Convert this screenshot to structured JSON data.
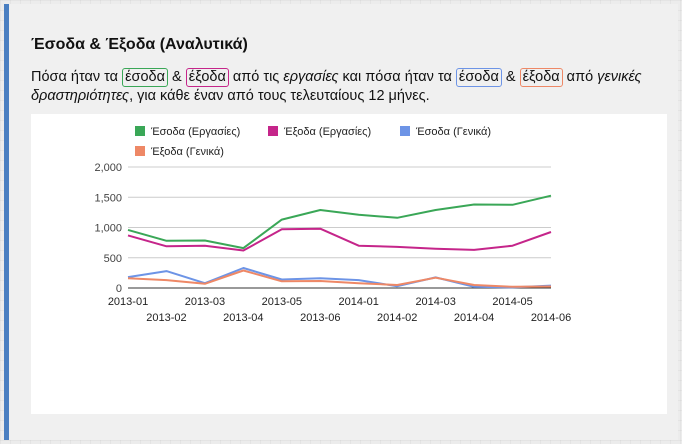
{
  "panel": {
    "title": "Έσοδα & Έξοδα (Αναλυτικά)",
    "intro": {
      "t1": "Πόσα ήταν τα ",
      "w_income_jobs": "έσοδα",
      "t2": " & ",
      "w_expense_jobs": "έξοδα",
      "t3": " από τις ",
      "w_jobs": "εργασίες",
      "t4": " και πόσα ήταν τα ",
      "w_income_general": "έσοδα",
      "t5": " & ",
      "w_expense_general": "έξοδα",
      "t6": " από ",
      "w_general": "γενικές δραστηριότητες",
      "t7": ", για κάθε έναν από τους τελευταίους 12 μήνες."
    }
  },
  "colors": {
    "income_jobs": "#3aa757",
    "expense_jobs": "#c5258a",
    "income_general": "#6d94e6",
    "expense_general": "#ee8866",
    "accent_bar": "#4a7fc1"
  },
  "chart_data": {
    "type": "line",
    "categories": [
      "2013-01",
      "2013-02",
      "2013-03",
      "2013-04",
      "2013-05",
      "2013-06",
      "2014-01",
      "2014-02",
      "2014-03",
      "2014-04",
      "2014-05",
      "2014-06"
    ],
    "series": [
      {
        "name": "Έσοδα (Εργασίες)",
        "color": "#3aa757",
        "values": [
          960,
          780,
          785,
          660,
          1130,
          1290,
          1210,
          1160,
          1290,
          1380,
          1375,
          1525
        ]
      },
      {
        "name": "Έξοδα (Εργασίες)",
        "color": "#c5258a",
        "values": [
          870,
          690,
          700,
          620,
          970,
          980,
          700,
          680,
          650,
          630,
          700,
          925
        ]
      },
      {
        "name": "Έσοδα (Γενικά)",
        "color": "#6d94e6",
        "values": [
          180,
          280,
          80,
          330,
          140,
          160,
          130,
          30,
          175,
          20,
          10,
          40
        ]
      },
      {
        "name": "Έξοδα (Γενικά)",
        "color": "#ee8866",
        "values": [
          160,
          130,
          70,
          290,
          110,
          115,
          80,
          50,
          170,
          50,
          20,
          25
        ]
      }
    ],
    "yticks": [
      0,
      500,
      1000,
      1500,
      2000
    ],
    "yticklabels": [
      "0",
      "500",
      "1,000",
      "1,500",
      "2,000"
    ],
    "ylim": [
      0,
      2000
    ],
    "grid": true,
    "legend_position": "top-left"
  }
}
